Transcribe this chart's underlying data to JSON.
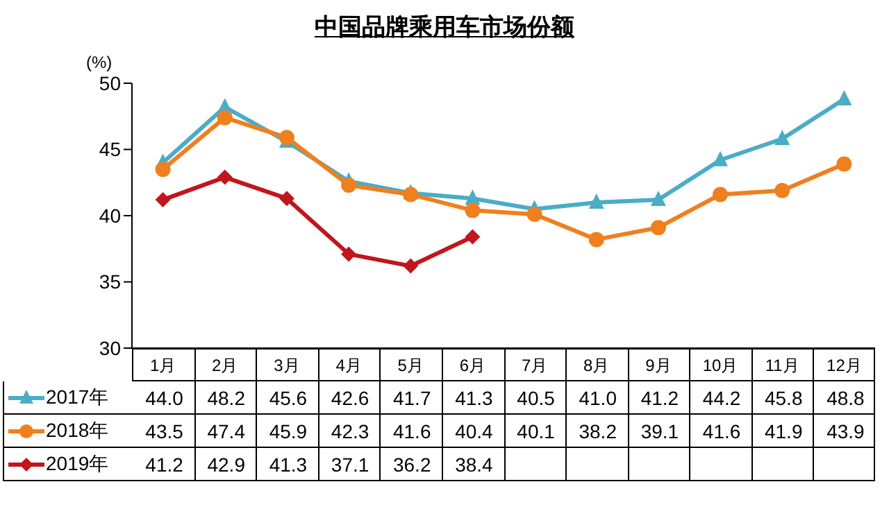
{
  "chart_data": {
    "type": "line",
    "title": "中国品牌乘用车市场份额",
    "ylabel": "(%)",
    "categories": [
      "1月",
      "2月",
      "3月",
      "4月",
      "5月",
      "6月",
      "7月",
      "8月",
      "9月",
      "10月",
      "11月",
      "12月"
    ],
    "series": [
      {
        "name": "2017年",
        "color": "#4bacc6",
        "marker": "triangle",
        "values": [
          44.0,
          48.2,
          45.6,
          42.6,
          41.7,
          41.3,
          40.5,
          41.0,
          41.2,
          44.2,
          45.8,
          48.8
        ],
        "value_labels": [
          "44.0",
          "48.2",
          "45.6",
          "42.6",
          "41.7",
          "41.3",
          "40.5",
          "41.0",
          "41.2",
          "44.2",
          "45.8",
          "48.8"
        ]
      },
      {
        "name": "2018年",
        "color": "#f07f1e",
        "marker": "circle",
        "values": [
          43.5,
          47.4,
          45.9,
          42.3,
          41.6,
          40.4,
          40.1,
          38.2,
          39.1,
          41.6,
          41.9,
          43.9
        ],
        "value_labels": [
          "43.5",
          "47.4",
          "45.9",
          "42.3",
          "41.6",
          "40.4",
          "40.1",
          "38.2",
          "39.1",
          "41.6",
          "41.9",
          "43.9"
        ]
      },
      {
        "name": "2019年",
        "color": "#c0161c",
        "marker": "diamond",
        "values": [
          41.2,
          42.9,
          41.3,
          37.1,
          36.2,
          38.4,
          null,
          null,
          null,
          null,
          null,
          null
        ],
        "value_labels": [
          "41.2",
          "42.9",
          "41.3",
          "37.1",
          "36.2",
          "38.4",
          null,
          null,
          null,
          null,
          null,
          null
        ]
      }
    ],
    "ylim": [
      30,
      50
    ],
    "yticks": [
      30,
      35,
      40,
      45,
      50
    ],
    "grid": false,
    "legend": "bottom left",
    "line_style": "solid"
  }
}
